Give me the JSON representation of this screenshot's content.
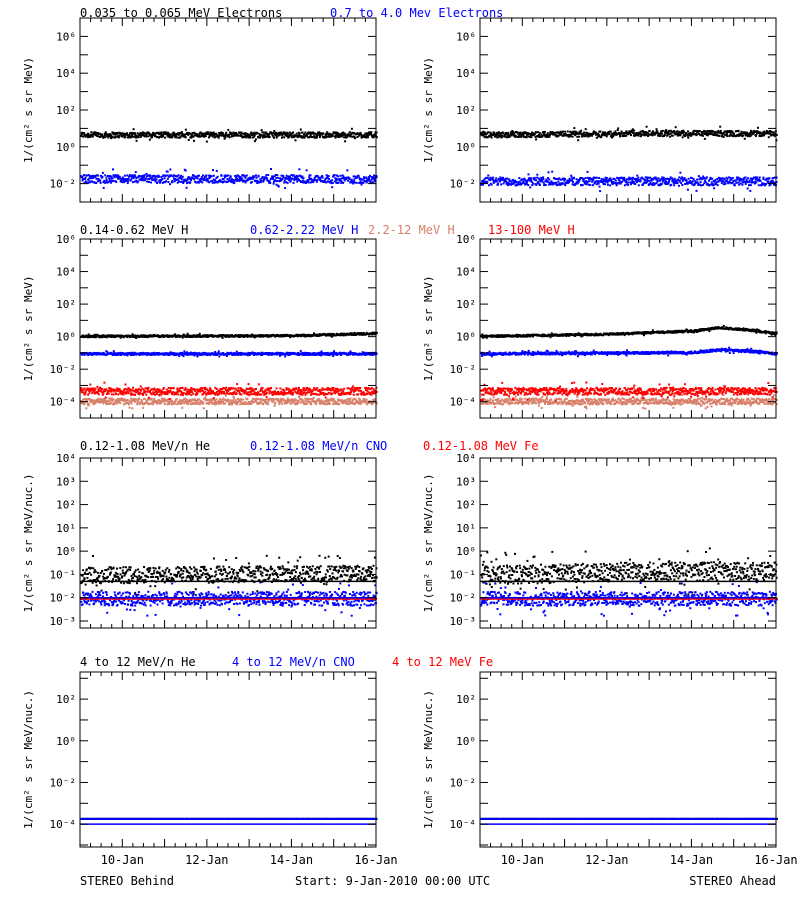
{
  "footer": {
    "left": "STEREO Behind",
    "center": "Start:  9-Jan-2010 00:00 UTC",
    "right": "STEREO Ahead"
  },
  "x_axis": {
    "range": [
      "2010-01-09",
      "2010-01-16"
    ],
    "tick_labels": [
      "10-Jan",
      "12-Jan",
      "14-Jan",
      "16-Jan"
    ]
  },
  "chart_data": [
    {
      "type": "scatter",
      "row": 1,
      "scale": "log",
      "ylabel": "1/(cm² s sr MeV)",
      "ylim": [
        0.001,
        10000000
      ],
      "yticks": [
        {
          "value": 1000000,
          "label": "10⁶"
        },
        {
          "value": 10000,
          "label": "10⁴"
        },
        {
          "value": 100,
          "label": "10²"
        },
        {
          "value": 1,
          "label": "10⁰"
        },
        {
          "value": 0.01,
          "label": "10⁻²"
        }
      ],
      "legend": [
        {
          "text": "0.035 to 0.065 MeV Electrons",
          "color": "#000000"
        },
        {
          "text": "0.7 to 4.0 Mev Electrons",
          "color": "#0000ff"
        }
      ],
      "panels": [
        {
          "spacecraft": "STEREO Behind",
          "series": [
            {
              "name": "0.035 to 0.065 MeV Electrons",
              "color": "#000000",
              "level": [
                [
                  0,
                  5
                ],
                [
                  7,
                  5
                ]
              ],
              "noise_decades": 0.15
            },
            {
              "name": "0.7 to 4.0 Mev Electrons",
              "color": "#0000ff",
              "level": [
                [
                  0,
                  0.02
                ],
                [
                  7,
                  0.02
                ]
              ],
              "noise_decades": 0.22
            }
          ]
        },
        {
          "spacecraft": "STEREO Ahead",
          "series": [
            {
              "name": "0.035 to 0.065 MeV Electrons",
              "color": "#000000",
              "level": [
                [
                  0,
                  5
                ],
                [
                  4,
                  6
                ],
                [
                  7,
                  6
                ]
              ],
              "noise_decades": 0.15
            },
            {
              "name": "0.7 to 4.0 Mev Electrons",
              "color": "#0000ff",
              "level": [
                [
                  0,
                  0.015
                ],
                [
                  7,
                  0.015
                ]
              ],
              "noise_decades": 0.22
            }
          ]
        }
      ]
    },
    {
      "type": "scatter",
      "row": 2,
      "scale": "log",
      "ylabel": "1/(cm² s sr MeV)",
      "ylim": [
        1e-05,
        1000000
      ],
      "yticks": [
        {
          "value": 1000000,
          "label": "10⁶"
        },
        {
          "value": 10000,
          "label": "10⁴"
        },
        {
          "value": 100,
          "label": "10²"
        },
        {
          "value": 1,
          "label": "10⁰"
        },
        {
          "value": 0.01,
          "label": "10⁻²"
        },
        {
          "value": 0.0001,
          "label": "10⁻⁴"
        }
      ],
      "legend": [
        {
          "text": "0.14-0.62 MeV H",
          "color": "#000000"
        },
        {
          "text": "0.62-2.22 MeV H",
          "color": "#0000ff"
        },
        {
          "text": "2.2-12 MeV H",
          "color": "#d8806a"
        },
        {
          "text": "13-100 MeV H",
          "color": "#ff0000"
        }
      ],
      "panels": [
        {
          "spacecraft": "STEREO Behind",
          "series": [
            {
              "name": "0.14-0.62 MeV H",
              "color": "#000000",
              "level": [
                [
                  0,
                  1.2
                ],
                [
                  5,
                  1.3
                ],
                [
                  7,
                  1.8
                ]
              ],
              "noise_decades": 0.06
            },
            {
              "name": "0.62-2.22 MeV H",
              "color": "#0000ff",
              "level": [
                [
                  0,
                  0.1
                ],
                [
                  7,
                  0.1
                ]
              ],
              "noise_decades": 0.07
            },
            {
              "name": "2.2-12 MeV H",
              "color": "#d8806a",
              "level": [
                [
                  0,
                  0.00012
                ],
                [
                  7,
                  0.00012
                ]
              ],
              "noise_decades": 0.18
            },
            {
              "name": "13-100 MeV H",
              "color": "#ff0000",
              "level": [
                [
                  0,
                  0.0005
                ],
                [
                  7,
                  0.0005
                ]
              ],
              "noise_decades": 0.22
            }
          ]
        },
        {
          "spacecraft": "STEREO Ahead",
          "series": [
            {
              "name": "0.14-0.62 MeV H",
              "color": "#000000",
              "level": [
                [
                  0,
                  1.2
                ],
                [
                  3,
                  1.6
                ],
                [
                  5,
                  2.5
                ],
                [
                  5.6,
                  4
                ],
                [
                  6.3,
                  3
                ],
                [
                  7,
                  1.8
                ]
              ],
              "noise_decades": 0.06
            },
            {
              "name": "0.62-2.22 MeV H",
              "color": "#0000ff",
              "level": [
                [
                  0,
                  0.1
                ],
                [
                  5,
                  0.12
                ],
                [
                  5.7,
                  0.18
                ],
                [
                  6.6,
                  0.13
                ],
                [
                  7,
                  0.1
                ]
              ],
              "noise_decades": 0.07
            },
            {
              "name": "2.2-12 MeV H",
              "color": "#d8806a",
              "level": [
                [
                  0,
                  0.00012
                ],
                [
                  7,
                  0.00012
                ]
              ],
              "noise_decades": 0.18
            },
            {
              "name": "13-100 MeV H",
              "color": "#ff0000",
              "level": [
                [
                  0,
                  0.0005
                ],
                [
                  7,
                  0.0005
                ]
              ],
              "noise_decades": 0.22
            }
          ]
        }
      ]
    },
    {
      "type": "scatter",
      "row": 3,
      "scale": "log",
      "ylabel": "1/(cm² s sr MeV/nuc.)",
      "ylim": [
        0.0005,
        10000
      ],
      "yticks": [
        {
          "value": 10000,
          "label": "10⁴"
        },
        {
          "value": 1000,
          "label": "10³"
        },
        {
          "value": 100,
          "label": "10²"
        },
        {
          "value": 10,
          "label": "10¹"
        },
        {
          "value": 1,
          "label": "10⁰"
        },
        {
          "value": 0.1,
          "label": "10⁻¹"
        },
        {
          "value": 0.01,
          "label": "10⁻²"
        },
        {
          "value": 0.001,
          "label": "10⁻³"
        }
      ],
      "legend": [
        {
          "text": "0.12-1.08 MeV/n He",
          "color": "#000000"
        },
        {
          "text": "0.12-1.08 MeV/n CNO",
          "color": "#0000ff"
        },
        {
          "text": "0.12-1.08 MeV Fe",
          "color": "#ff0000"
        }
      ],
      "panels": [
        {
          "spacecraft": "STEREO Behind",
          "series": [
            {
              "name": "0.12-1.08 MeV/n He",
              "color": "#000000",
              "level": [
                [
                  0,
                  0.1
                ],
                [
                  7,
                  0.12
                ]
              ],
              "noise_decades": 0.35
            },
            {
              "name": "0.12-1.08 MeV/n CNO",
              "color": "#0000ff",
              "level": [
                [
                  0,
                  0.01
                ],
                [
                  7,
                  0.01
                ]
              ],
              "noise_decades": 0.3
            },
            {
              "name": "0.12-1.08 MeV Fe",
              "color": "#ff0000",
              "level": [
                [
                  0,
                  0.01
                ],
                [
                  7,
                  0.01
                ]
              ],
              "noise_decades": 0.0
            }
          ],
          "baselines": [
            {
              "value": 0.05,
              "color": "#000000"
            },
            {
              "value": 0.01,
              "color": "#0000ff"
            }
          ]
        },
        {
          "spacecraft": "STEREO Ahead",
          "series": [
            {
              "name": "0.12-1.08 MeV/n He",
              "color": "#000000",
              "level": [
                [
                  0,
                  0.1
                ],
                [
                  4,
                  0.15
                ],
                [
                  7,
                  0.15
                ]
              ],
              "noise_decades": 0.4
            },
            {
              "name": "0.12-1.08 MeV/n CNO",
              "color": "#0000ff",
              "level": [
                [
                  0,
                  0.01
                ],
                [
                  7,
                  0.01
                ]
              ],
              "noise_decades": 0.3
            },
            {
              "name": "0.12-1.08 MeV Fe",
              "color": "#ff0000",
              "level": [
                [
                  0,
                  0.01
                ],
                [
                  7,
                  0.01
                ]
              ],
              "noise_decades": 0.0
            }
          ],
          "baselines": [
            {
              "value": 0.05,
              "color": "#000000"
            },
            {
              "value": 0.01,
              "color": "#0000ff"
            }
          ]
        }
      ]
    },
    {
      "type": "scatter",
      "row": 4,
      "scale": "log",
      "ylabel": "1/(cm² s sr MeV/nuc.)",
      "ylim": [
        8e-06,
        2000
      ],
      "yticks": [
        {
          "value": 100,
          "label": "10²"
        },
        {
          "value": 1,
          "label": "10⁰"
        },
        {
          "value": 0.01,
          "label": "10⁻²"
        },
        {
          "value": 0.0001,
          "label": "10⁻⁴"
        }
      ],
      "legend": [
        {
          "text": "4 to 12 MeV/n He",
          "color": "#000000"
        },
        {
          "text": "4 to 12 MeV/n CNO",
          "color": "#0000ff"
        },
        {
          "text": "4 to 12 MeV Fe",
          "color": "#ff0000"
        }
      ],
      "panels": [
        {
          "spacecraft": "STEREO Behind",
          "series": [
            {
              "name": "4 to 12 MeV/n He",
              "color": "#000000",
              "level": [
                [
                  0,
                  0.0002
                ],
                [
                  7,
                  0.0002
                ]
              ],
              "noise_decades": 0.0
            },
            {
              "name": "4 to 12 MeV/n CNO",
              "color": "#0000ff",
              "level": [
                [
                  0,
                  0.0002
                ],
                [
                  7,
                  0.0002
                ]
              ],
              "noise_decades": 0.0
            }
          ],
          "baselines": [
            {
              "value": 0.0001,
              "color": "#0000ff"
            }
          ]
        },
        {
          "spacecraft": "STEREO Ahead",
          "series": [
            {
              "name": "4 to 12 MeV/n He",
              "color": "#000000",
              "level": [
                [
                  0,
                  0.0002
                ],
                [
                  7,
                  0.0002
                ]
              ],
              "noise_decades": 0.0
            },
            {
              "name": "4 to 12 MeV/n CNO",
              "color": "#0000ff",
              "level": [
                [
                  0,
                  0.0002
                ],
                [
                  7,
                  0.0002
                ]
              ],
              "noise_decades": 0.0
            }
          ],
          "baselines": [
            {
              "value": 0.0001,
              "color": "#0000ff"
            }
          ]
        }
      ]
    }
  ]
}
